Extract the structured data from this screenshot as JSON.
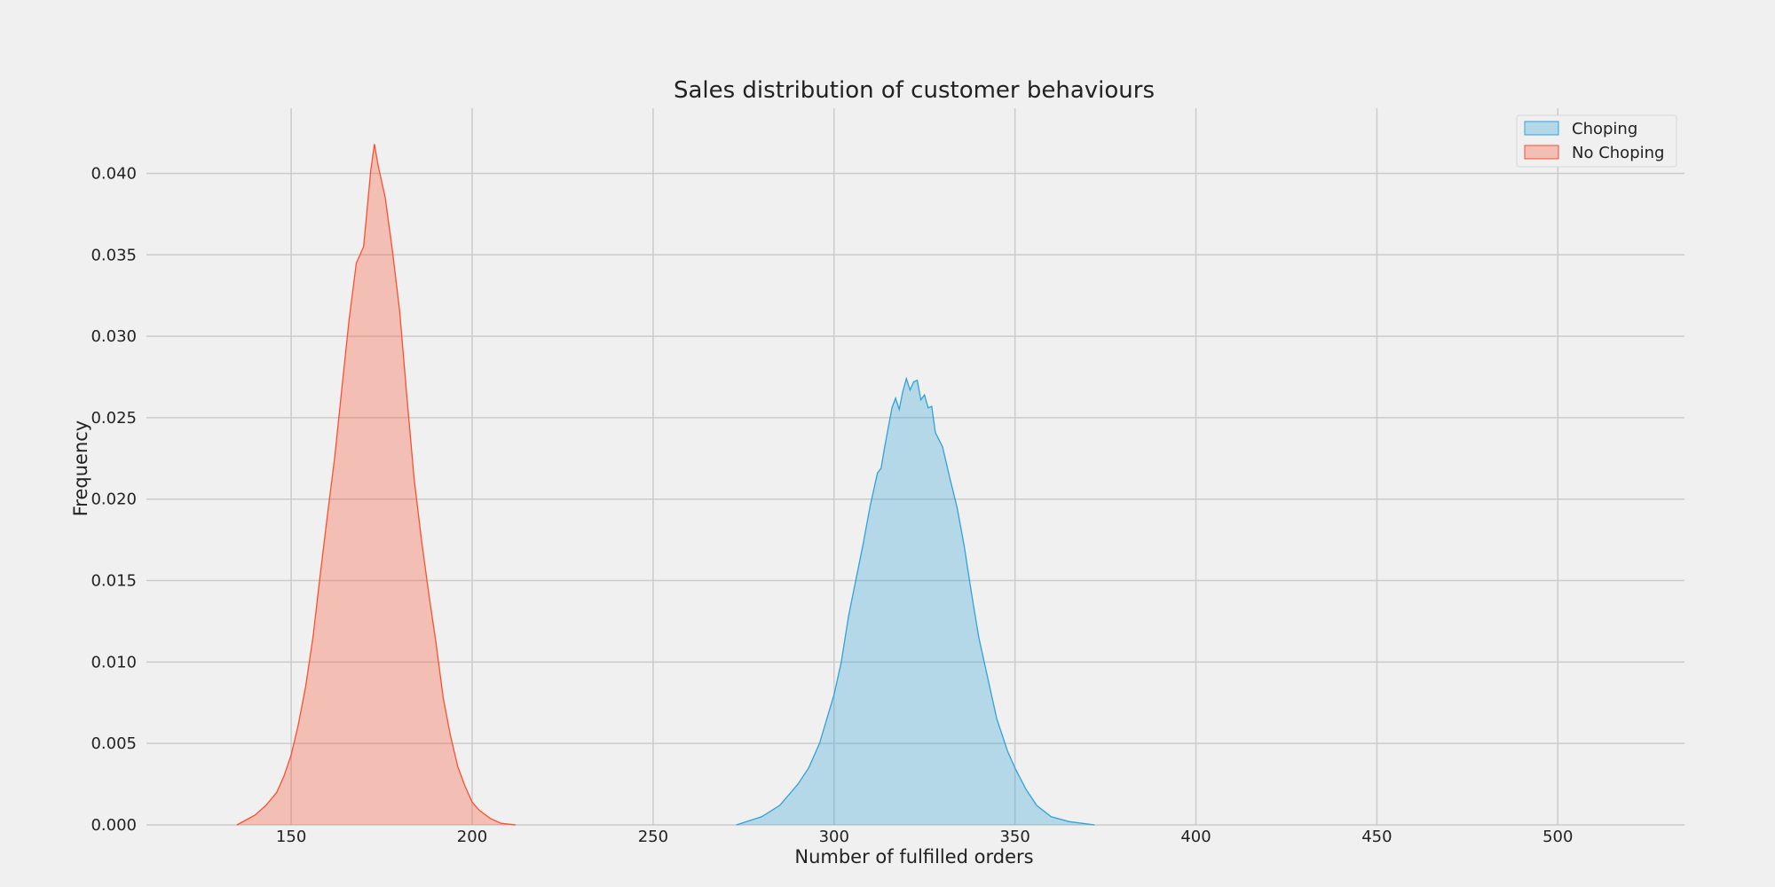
{
  "chart_data": {
    "type": "area",
    "title": "Sales distribution of customer behaviours",
    "xlabel": "Number of fulfilled orders",
    "ylabel": "Frequency",
    "xlim": [
      110,
      535
    ],
    "ylim": [
      0,
      0.044
    ],
    "x_ticks": [
      150,
      200,
      250,
      300,
      350,
      400,
      450,
      500
    ],
    "y_ticks": [
      0.0,
      0.005,
      0.01,
      0.015,
      0.02,
      0.025,
      0.03,
      0.035,
      0.04
    ],
    "grid": true,
    "legend_position": "top-right",
    "series": [
      {
        "name": "Choping",
        "color": "#30a2da",
        "x": [
          273,
          280,
          285,
          290,
          293,
          296,
          298,
          300,
          302,
          304,
          306,
          308,
          310,
          312,
          313,
          314,
          316,
          317,
          318,
          319,
          320,
          321,
          322,
          323,
          324,
          325,
          326,
          327,
          328,
          330,
          332,
          334,
          336,
          338,
          340,
          342,
          345,
          348,
          350,
          353,
          356,
          360,
          365,
          372
        ],
        "y": [
          0.0,
          0.0005,
          0.0012,
          0.0025,
          0.0035,
          0.005,
          0.0065,
          0.008,
          0.01,
          0.0128,
          0.015,
          0.0172,
          0.0196,
          0.0216,
          0.0219,
          0.0232,
          0.0256,
          0.0262,
          0.0255,
          0.0266,
          0.0274,
          0.0267,
          0.0272,
          0.0273,
          0.0261,
          0.0264,
          0.0256,
          0.0257,
          0.0241,
          0.0232,
          0.0213,
          0.0195,
          0.0171,
          0.0142,
          0.0115,
          0.0095,
          0.0065,
          0.0045,
          0.0035,
          0.0022,
          0.0012,
          0.0005,
          0.0002,
          0.0
        ]
      },
      {
        "name": "No Choping",
        "color": "#fc4f30",
        "x": [
          135,
          140,
          143,
          146,
          148,
          150,
          152,
          154,
          156,
          158,
          160,
          162,
          164,
          166,
          168,
          170,
          172,
          173,
          174,
          176,
          178,
          180,
          182,
          184,
          186,
          188,
          190,
          192,
          194,
          196,
          198,
          200,
          202,
          205,
          208,
          212
        ],
        "y": [
          0.0,
          0.0006,
          0.0012,
          0.002,
          0.003,
          0.0043,
          0.0062,
          0.0085,
          0.0115,
          0.0153,
          0.019,
          0.0225,
          0.0268,
          0.031,
          0.0345,
          0.0355,
          0.0402,
          0.0418,
          0.0405,
          0.0385,
          0.0352,
          0.0315,
          0.0262,
          0.0212,
          0.0175,
          0.0142,
          0.0112,
          0.0078,
          0.0055,
          0.0036,
          0.0024,
          0.0014,
          0.0009,
          0.0004,
          0.0001,
          0.0
        ]
      }
    ]
  }
}
